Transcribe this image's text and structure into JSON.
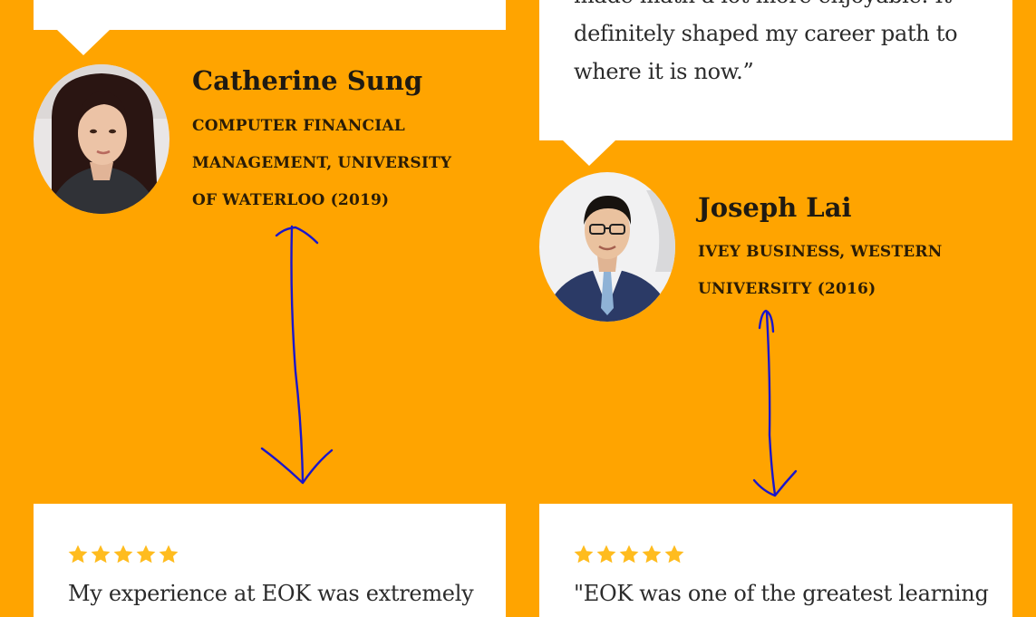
{
  "testimonials": [
    {
      "quote_lines": [],
      "name": "Catherine Sung",
      "role_lines": [
        "COMPUTER FINANCIAL",
        "MANAGEMENT, UNIVERSITY",
        "OF WATERLOO (2019)"
      ]
    },
    {
      "quote_lines": [
        "made math a lot more enjoyable. It",
        "definitely shaped my career path to",
        "where it is now.”"
      ],
      "name": "Joseph Lai",
      "role_lines": [
        "IVEY BUSINESS, WESTERN",
        "UNIVERSITY (2016)"
      ]
    }
  ],
  "reviews": [
    {
      "rating": 5,
      "text": "My experience at EOK was extremely"
    },
    {
      "rating": 5,
      "text": "\"EOK was one of the greatest learning"
    }
  ],
  "colors": {
    "background": "#ffa400",
    "card": "#ffffff",
    "star": "#ffbc1f",
    "annotation": "#1a16cc"
  },
  "icons": {
    "rating": "star-icon",
    "annotation": "double-arrow-icon"
  }
}
